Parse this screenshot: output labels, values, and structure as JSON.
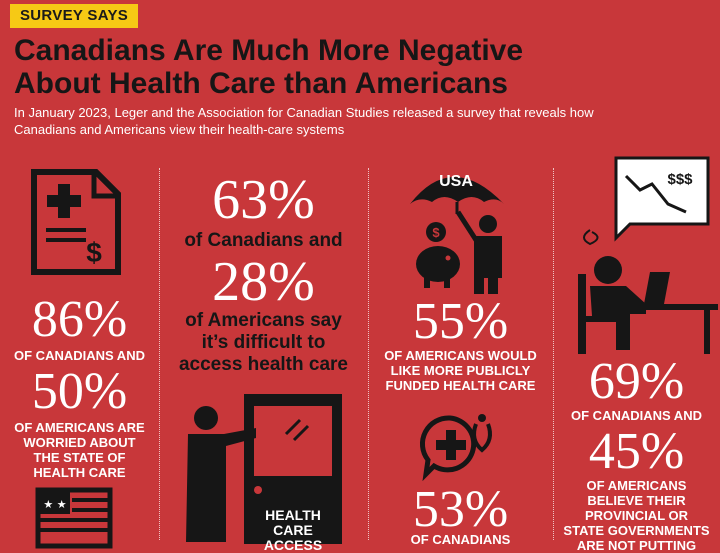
{
  "tag": "SURVEY SAYS",
  "headline_line1": "Canadians Are Much More Negative",
  "headline_line2": "About Health Care than Americans",
  "intro_line1": "In January 2023, Leger and the Association for Canadian Studies released a survey that reveals how",
  "intro_line2": "Canadians and Americans view their health-care systems",
  "col1": {
    "stat1": "86%",
    "text1": "OF CANADIANS AND",
    "stat2": "50%",
    "text2_line1": "OF AMERICANS ARE",
    "text2_line2": "WORRIED ABOUT",
    "text2_line3": "THE STATE OF",
    "text2_line4": "HEALTH CARE"
  },
  "col2": {
    "stat1": "63%",
    "text1": "of Canadians and",
    "stat2": "28%",
    "text2_line1": "of Americans say",
    "text2_line2": "it’s difficult to",
    "text2_line3": "access health care",
    "door_line1": "HEALTH",
    "door_line2": "CARE",
    "door_line3": "ACCESS"
  },
  "col3": {
    "umbrella_label": "USA",
    "coin_symbol": "$",
    "stat1": "55%",
    "text1_line1": "OF AMERICANS WOULD",
    "text1_line2": "LIKE MORE PUBLICLY",
    "text1_line3": "FUNDED HEALTH CARE",
    "stat2": "53%",
    "text2": "OF CANADIANS"
  },
  "col4": {
    "screen_label": "$$$",
    "stat1": "69%",
    "text1": "OF CANADIANS AND",
    "stat2": "45%",
    "text2_line1": "OF AMERICANS",
    "text2_line2": "BELIEVE THEIR",
    "text2_line3": "PROVINCIAL OR",
    "text2_line4": "STATE GOVERNMENTS",
    "text2_line5": "ARE NOT PUTTING"
  },
  "colors": {
    "background": "#c8373a",
    "tag_bg": "#f6c915",
    "dark": "#161616"
  }
}
